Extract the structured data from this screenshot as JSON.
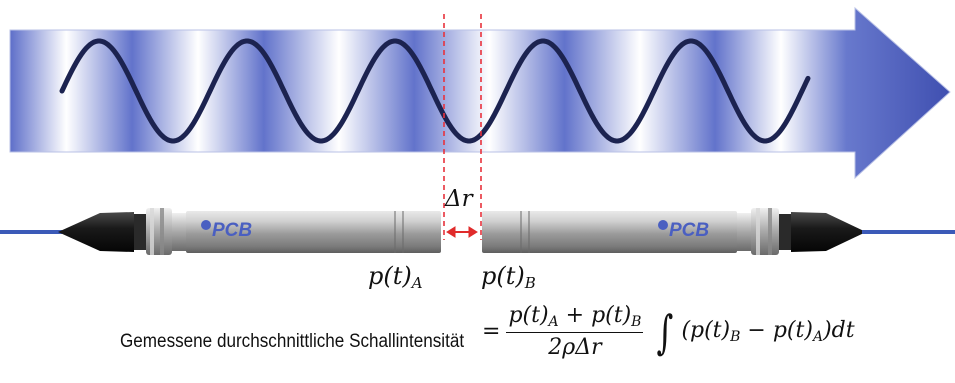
{
  "labels": {
    "delta_r": "Δr",
    "pressure_a": {
      "base": "p(t)",
      "sub": "A"
    },
    "pressure_b": {
      "base": "p(t)",
      "sub": "B"
    },
    "brand": "PCB",
    "caption": "Gemessene durchschnittliche Schallintensität"
  },
  "formula": {
    "equals": "=",
    "numerator": "p(t)A + p(t)B",
    "numerator_parts": {
      "p1": "p(t)",
      "s1": "A",
      "plus": " + ",
      "p2": "p(t)",
      "s2": "B"
    },
    "denominator": "2ρΔr",
    "integral": "∫",
    "integrand_parts": {
      "open": "(p(t)",
      "s1": "B",
      "minus": " − p(t)",
      "s2": "A",
      "close": ")dt"
    }
  },
  "colors": {
    "arrow_dark": "#5566c8",
    "arrow_light": "#ffffff",
    "wave": "#1c2350",
    "dash_line": "#e8323c",
    "gap_arrow": "#e02b2b",
    "probe_body": "#a9a9a9",
    "probe_cap": "#141414",
    "cable": "#3b5ab8"
  },
  "icons": {
    "gap": "double-headed-arrow",
    "brand_logo": "pcb-logo"
  }
}
